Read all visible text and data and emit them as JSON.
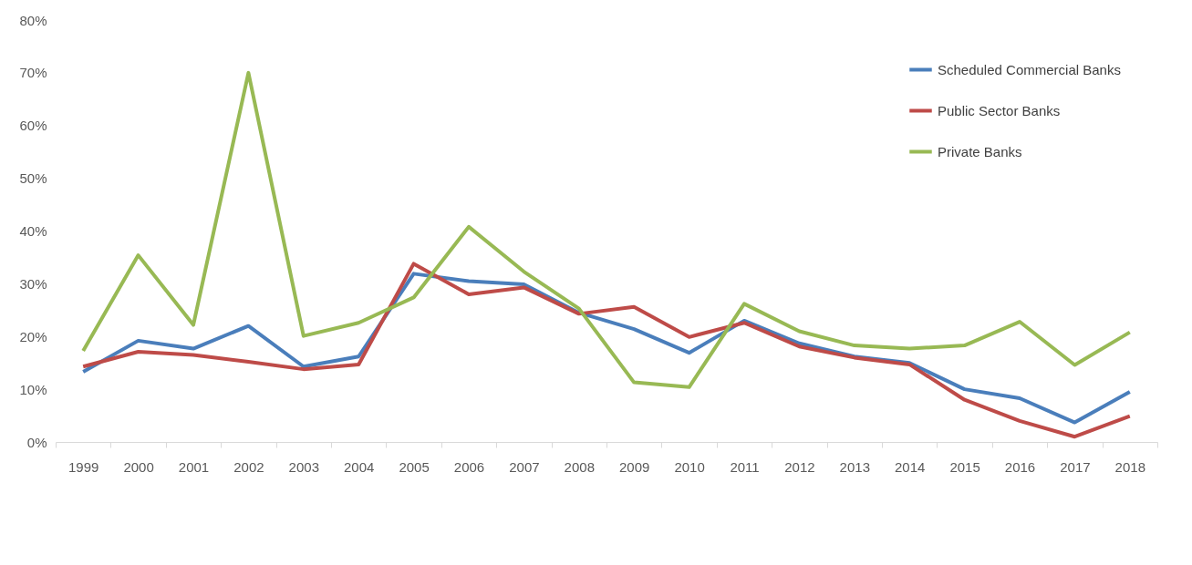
{
  "chart_data": {
    "type": "line",
    "categories": [
      "1999",
      "2000",
      "2001",
      "2002",
      "2003",
      "2004",
      "2005",
      "2006",
      "2007",
      "2008",
      "2009",
      "2010",
      "2011",
      "2012",
      "2013",
      "2014",
      "2015",
      "2016",
      "2017",
      "2018"
    ],
    "series": [
      {
        "name": "Scheduled Commercial Banks",
        "color": "#4a7ebb",
        "values": [
          13.3,
          19.2,
          17.7,
          22.0,
          14.3,
          16.2,
          31.9,
          30.5,
          29.9,
          24.5,
          21.4,
          16.9,
          23.0,
          18.7,
          16.2,
          15.0,
          10.0,
          8.3,
          3.7,
          9.5
        ]
      },
      {
        "name": "Public Sector Banks",
        "color": "#be4b48",
        "values": [
          14.3,
          17.1,
          16.5,
          15.2,
          13.8,
          14.7,
          33.8,
          28.0,
          29.3,
          24.3,
          25.6,
          19.9,
          22.6,
          18.1,
          16.0,
          14.7,
          8.0,
          4.0,
          1.0,
          4.9
        ]
      },
      {
        "name": "Private Banks",
        "color": "#98b954",
        "values": [
          17.3,
          35.4,
          22.2,
          70.0,
          20.1,
          22.6,
          27.4,
          40.8,
          32.3,
          25.3,
          11.3,
          10.4,
          26.2,
          21.0,
          18.3,
          17.7,
          18.3,
          22.8,
          14.6,
          20.8
        ]
      }
    ],
    "ylim": [
      0,
      80
    ],
    "yticks": [
      {
        "value": 0,
        "label": "0%"
      },
      {
        "value": 10,
        "label": "10%"
      },
      {
        "value": 20,
        "label": "20%"
      },
      {
        "value": 30,
        "label": "30%"
      },
      {
        "value": 40,
        "label": "40%"
      },
      {
        "value": 50,
        "label": "50%"
      },
      {
        "value": 60,
        "label": "60%"
      },
      {
        "value": 70,
        "label": "70%"
      },
      {
        "value": 80,
        "label": "80%"
      }
    ],
    "grid": false,
    "legend": "top right",
    "marker": "none",
    "line_style": "solid"
  }
}
